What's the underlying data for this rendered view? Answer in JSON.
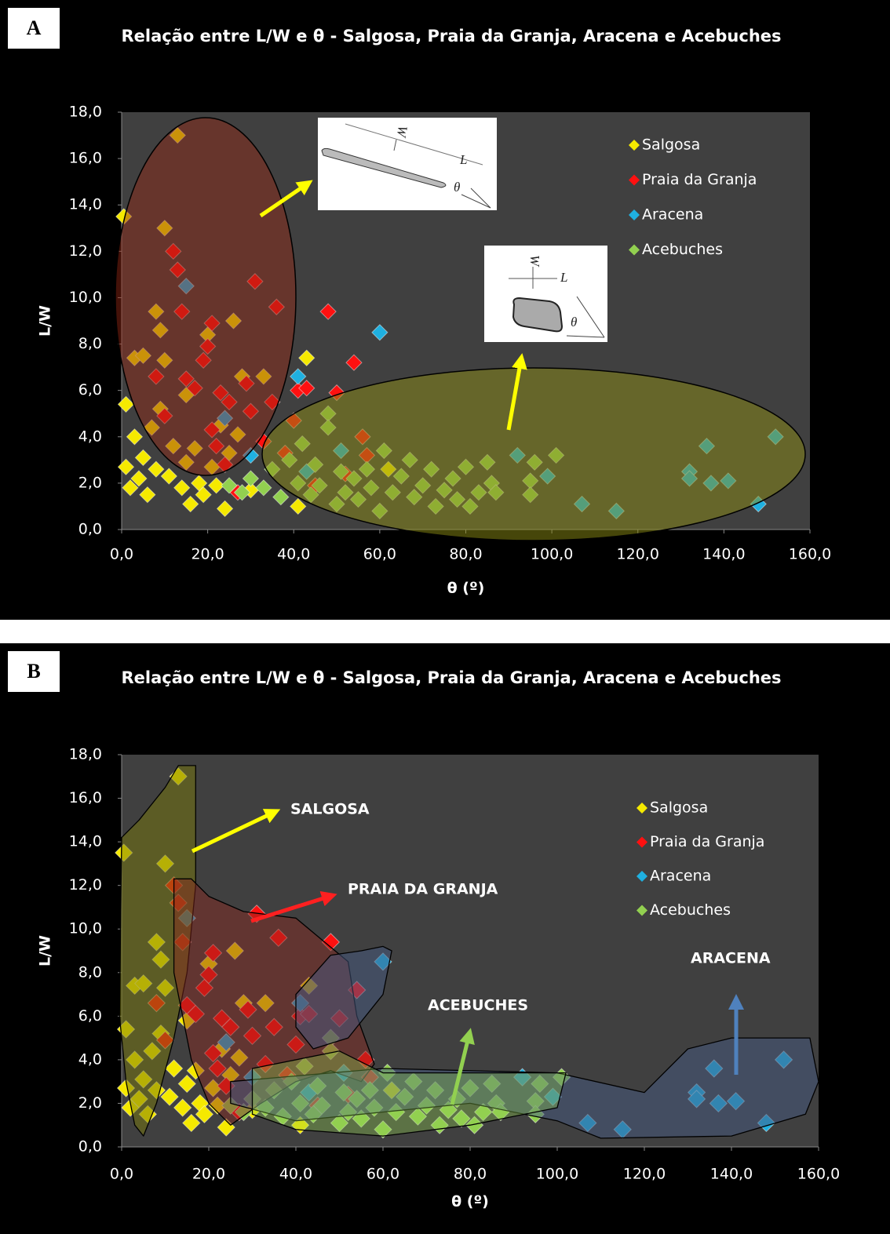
{
  "chart_data": [
    {
      "type": "scatter",
      "panel": "A",
      "title": "Relação entre L/W e θ  - Salgosa, Praia da Granja, Aracena e Acebuches",
      "x_label": "θ (º)",
      "y_label": "L/W",
      "xlim": [
        0,
        160
      ],
      "ylim": [
        0,
        18
      ],
      "xticks": [
        {
          "value": 0,
          "label": "0,0"
        },
        {
          "value": 20,
          "label": "20,0"
        },
        {
          "value": 40,
          "label": "40,0"
        },
        {
          "value": 60,
          "label": "60,0"
        },
        {
          "value": 80,
          "label": "80,0"
        },
        {
          "value": 100,
          "label": "100,0"
        },
        {
          "value": 120,
          "label": "120,0"
        },
        {
          "value": 140,
          "label": "140,0"
        },
        {
          "value": 160,
          "label": "160,0"
        }
      ],
      "yticks": [
        {
          "value": 0,
          "label": "0,0"
        },
        {
          "value": 2,
          "label": "2,0"
        },
        {
          "value": 4,
          "label": "4,0"
        },
        {
          "value": 6,
          "label": "6,0"
        },
        {
          "value": 8,
          "label": "8,0"
        },
        {
          "value": 10,
          "label": "10,0"
        },
        {
          "value": 12,
          "label": "12,0"
        },
        {
          "value": 14,
          "label": "14,0"
        },
        {
          "value": 16,
          "label": "16,0"
        },
        {
          "value": 18,
          "label": "18,0"
        }
      ],
      "legend": "upper right",
      "inset_labels": [
        "W",
        "L",
        "θ",
        "W",
        "L",
        "θ"
      ],
      "series": [
        {
          "name": "Salgosa",
          "color": "#f5e900",
          "x": [
            0.5,
            1,
            1,
            2,
            3,
            3,
            4,
            5,
            5,
            6,
            7,
            8,
            8,
            9,
            9,
            10,
            10,
            11,
            12,
            13,
            14,
            15,
            15,
            16,
            17,
            18,
            19,
            20,
            21,
            22,
            23,
            24,
            25,
            26,
            27,
            28,
            30,
            33,
            41,
            43,
            62
          ],
          "values": [
            13.5,
            5.4,
            2.7,
            1.8,
            7.4,
            4.0,
            2.2,
            7.5,
            3.1,
            1.5,
            4.4,
            9.4,
            2.6,
            8.6,
            5.2,
            13.0,
            7.3,
            2.3,
            3.6,
            17.0,
            1.8,
            5.8,
            2.9,
            1.1,
            3.5,
            2.0,
            1.5,
            8.4,
            2.7,
            1.9,
            4.5,
            0.9,
            3.3,
            9.0,
            4.1,
            6.6,
            1.7,
            6.6,
            1.0,
            7.4,
            2.6
          ]
        },
        {
          "name": "Praia da Granja",
          "color": "#ff1010",
          "x": [
            8,
            10,
            12,
            13,
            14,
            15,
            17,
            19,
            20,
            21,
            21,
            22,
            23,
            24,
            25,
            27,
            29,
            30,
            31,
            33,
            35,
            36,
            38,
            40,
            41,
            43,
            45,
            48,
            50,
            52,
            54,
            56,
            57
          ],
          "values": [
            6.6,
            4.9,
            12.0,
            11.2,
            9.4,
            6.5,
            6.1,
            7.3,
            7.9,
            8.9,
            4.3,
            3.6,
            5.9,
            2.8,
            5.5,
            1.6,
            6.3,
            5.1,
            10.7,
            3.8,
            5.5,
            9.6,
            3.3,
            4.7,
            6.0,
            6.1,
            1.9,
            9.4,
            5.9,
            2.4,
            7.2,
            4.0,
            3.2
          ]
        },
        {
          "name": "Aracena",
          "color": "#1fb0e0",
          "x": [
            15,
            24,
            30,
            41,
            43,
            51,
            60,
            92,
            99,
            107,
            115,
            132,
            132,
            136,
            137,
            141,
            148,
            152
          ],
          "values": [
            10.5,
            4.8,
            3.2,
            6.6,
            2.5,
            3.4,
            8.5,
            3.2,
            2.3,
            1.1,
            0.8,
            2.5,
            2.2,
            3.6,
            2.0,
            2.1,
            1.1,
            4.0
          ]
        },
        {
          "name": "Acebuches",
          "color": "#92d050",
          "x": [
            25,
            28,
            30,
            33,
            35,
            37,
            39,
            41,
            42,
            44,
            45,
            46,
            48,
            48,
            50,
            51,
            52,
            54,
            55,
            57,
            58,
            60,
            61,
            63,
            65,
            67,
            68,
            70,
            72,
            73,
            75,
            77,
            78,
            80,
            81,
            83,
            85,
            86,
            87,
            95,
            95,
            96,
            101
          ],
          "values": [
            1.9,
            1.6,
            2.2,
            1.8,
            2.6,
            1.4,
            3.0,
            2.0,
            3.7,
            1.5,
            2.8,
            1.9,
            5.0,
            4.4,
            1.1,
            2.5,
            1.6,
            2.2,
            1.3,
            2.6,
            1.8,
            0.8,
            3.4,
            1.6,
            2.3,
            3.0,
            1.4,
            1.9,
            2.6,
            1.0,
            1.7,
            2.2,
            1.3,
            2.7,
            1.0,
            1.6,
            2.9,
            2.0,
            1.6,
            2.1,
            1.5,
            2.9,
            3.2
          ]
        }
      ]
    },
    {
      "type": "scatter",
      "panel": "B",
      "title": "Relação entre L/W e θ - Salgosa, Praia da Granja, Aracena e Acebuches",
      "x_label": "θ (º)",
      "y_label": "L/W",
      "xlim": [
        0,
        160
      ],
      "ylim": [
        0,
        18
      ],
      "xticks": [
        {
          "value": 0,
          "label": "0,0"
        },
        {
          "value": 20,
          "label": "20,0"
        },
        {
          "value": 40,
          "label": "40,0"
        },
        {
          "value": 60,
          "label": "60,0"
        },
        {
          "value": 80,
          "label": "80,0"
        },
        {
          "value": 100,
          "label": "100,0"
        },
        {
          "value": 120,
          "label": "120,0"
        },
        {
          "value": 140,
          "label": "140,0"
        },
        {
          "value": 160,
          "label": "160,0"
        }
      ],
      "yticks": [
        {
          "value": 0,
          "label": "0,0"
        },
        {
          "value": 2,
          "label": "2,0"
        },
        {
          "value": 4,
          "label": "4,0"
        },
        {
          "value": 6,
          "label": "6,0"
        },
        {
          "value": 8,
          "label": "8,0"
        },
        {
          "value": 10,
          "label": "10,0"
        },
        {
          "value": 12,
          "label": "12,0"
        },
        {
          "value": 14,
          "label": "14,0"
        },
        {
          "value": 16,
          "label": "16,0"
        },
        {
          "value": 18,
          "label": "18,0"
        }
      ],
      "legend": "upper right",
      "annotations": [
        "SALGOSA",
        "PRAIA DA GRANJA",
        "ACEBUCHES",
        "ARACENA"
      ],
      "series": [
        {
          "name": "Salgosa",
          "color": "#f5e900",
          "x": [
            0.5,
            1,
            1,
            2,
            3,
            3,
            4,
            5,
            5,
            6,
            7,
            8,
            8,
            9,
            9,
            10,
            10,
            11,
            12,
            13,
            14,
            15,
            15,
            16,
            17,
            18,
            19,
            20,
            21,
            22,
            23,
            24,
            25,
            26,
            27,
            28,
            30,
            33,
            41,
            43,
            62
          ],
          "values": [
            13.5,
            5.4,
            2.7,
            1.8,
            7.4,
            4.0,
            2.2,
            7.5,
            3.1,
            1.5,
            4.4,
            9.4,
            2.6,
            8.6,
            5.2,
            13.0,
            7.3,
            2.3,
            3.6,
            17.0,
            1.8,
            5.8,
            2.9,
            1.1,
            3.5,
            2.0,
            1.5,
            8.4,
            2.7,
            1.9,
            4.5,
            0.9,
            3.3,
            9.0,
            4.1,
            6.6,
            1.7,
            6.6,
            1.0,
            7.4,
            2.6
          ]
        },
        {
          "name": "Praia da Granja",
          "color": "#ff1010",
          "x": [
            8,
            10,
            12,
            13,
            14,
            15,
            17,
            19,
            20,
            21,
            21,
            22,
            23,
            24,
            25,
            27,
            29,
            30,
            31,
            33,
            35,
            36,
            38,
            40,
            41,
            43,
            45,
            48,
            50,
            52,
            54,
            56,
            57
          ],
          "values": [
            6.6,
            4.9,
            12.0,
            11.2,
            9.4,
            6.5,
            6.1,
            7.3,
            7.9,
            8.9,
            4.3,
            3.6,
            5.9,
            2.8,
            5.5,
            1.6,
            6.3,
            5.1,
            10.7,
            3.8,
            5.5,
            9.6,
            3.3,
            4.7,
            6.0,
            6.1,
            1.9,
            9.4,
            5.9,
            2.4,
            7.2,
            4.0,
            3.2
          ]
        },
        {
          "name": "Aracena",
          "color": "#1fb0e0",
          "x": [
            15,
            24,
            30,
            41,
            43,
            51,
            60,
            92,
            99,
            107,
            115,
            132,
            132,
            136,
            137,
            141,
            148,
            152
          ],
          "values": [
            10.5,
            4.8,
            3.2,
            6.6,
            2.5,
            3.4,
            8.5,
            3.2,
            2.3,
            1.1,
            0.8,
            2.5,
            2.2,
            3.6,
            2.0,
            2.1,
            1.1,
            4.0
          ]
        },
        {
          "name": "Acebuches",
          "color": "#92d050",
          "x": [
            25,
            28,
            30,
            33,
            35,
            37,
            39,
            41,
            42,
            44,
            45,
            46,
            48,
            48,
            50,
            51,
            52,
            54,
            55,
            57,
            58,
            60,
            61,
            63,
            65,
            67,
            68,
            70,
            72,
            73,
            75,
            77,
            78,
            80,
            81,
            83,
            85,
            86,
            87,
            95,
            95,
            96,
            101
          ],
          "values": [
            1.9,
            1.6,
            2.2,
            1.8,
            2.6,
            1.4,
            3.0,
            2.0,
            3.7,
            1.5,
            2.8,
            1.9,
            5.0,
            4.4,
            1.1,
            2.5,
            1.6,
            2.2,
            1.3,
            2.6,
            1.8,
            0.8,
            3.4,
            1.6,
            2.3,
            3.0,
            1.4,
            1.9,
            2.6,
            1.0,
            1.7,
            2.2,
            1.3,
            2.7,
            1.0,
            1.6,
            2.9,
            2.0,
            1.6,
            2.1,
            1.5,
            2.9,
            3.2
          ]
        }
      ]
    }
  ]
}
